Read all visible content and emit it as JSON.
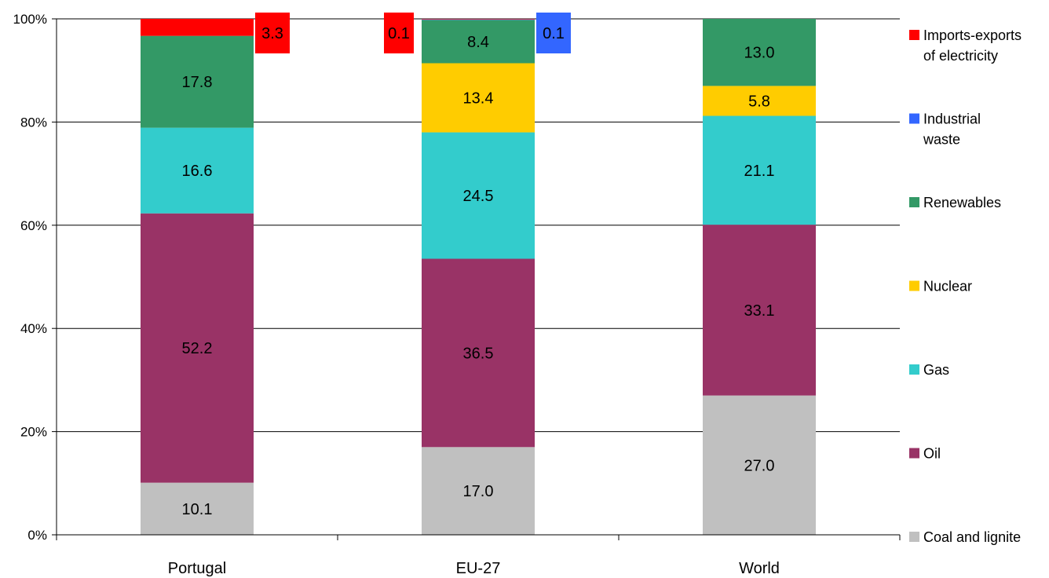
{
  "chart_data": {
    "type": "bar",
    "stacked": true,
    "normalized_percent": true,
    "categories": [
      "Portugal",
      "EU-27",
      "World"
    ],
    "ylim": [
      0,
      100
    ],
    "yticks": [
      "0%",
      "20%",
      "40%",
      "60%",
      "80%",
      "100%"
    ],
    "grid": true,
    "legend_position": "right",
    "series": [
      {
        "name": "Coal and lignite",
        "color": "#c0c0c0",
        "values": [
          10.1,
          17.0,
          27.0
        ]
      },
      {
        "name": "Oil",
        "color": "#993366",
        "values": [
          52.2,
          36.5,
          33.1
        ]
      },
      {
        "name": "Gas",
        "color": "#33cccc",
        "values": [
          16.6,
          24.5,
          21.1
        ]
      },
      {
        "name": "Nuclear",
        "color": "#ffcc00",
        "values": [
          0,
          13.4,
          5.8
        ]
      },
      {
        "name": "Renewables",
        "color": "#339966",
        "values": [
          17.8,
          8.4,
          13.0
        ]
      },
      {
        "name": "Industrial waste",
        "color": "#3366ff",
        "values": [
          0,
          0.1,
          0
        ]
      },
      {
        "name": "Imports-exports of electricity",
        "color": "#ff0000",
        "values": [
          3.3,
          0.1,
          0
        ]
      }
    ],
    "data_labels": [
      [
        "10.1",
        "52.2",
        "16.6",
        "",
        "17.8",
        "",
        "3.3"
      ],
      [
        "17.0",
        "36.5",
        "24.5",
        "13.4",
        "8.4",
        "0.1",
        "0.1"
      ],
      [
        "27.0",
        "33.1",
        "21.1",
        "5.8",
        "13.0",
        "",
        ""
      ]
    ],
    "legend": [
      {
        "lines": [
          "Imports-exports",
          "of electricity"
        ],
        "color": "#ff0000"
      },
      {
        "lines": [
          "Industrial",
          "waste"
        ],
        "color": "#3366ff"
      },
      {
        "lines": [
          "Renewables"
        ],
        "color": "#339966"
      },
      {
        "lines": [
          "Nuclear"
        ],
        "color": "#ffcc00"
      },
      {
        "lines": [
          "Gas"
        ],
        "color": "#33cccc"
      },
      {
        "lines": [
          "Oil"
        ],
        "color": "#993366"
      },
      {
        "lines": [
          "Coal and lignite"
        ],
        "color": "#c0c0c0"
      }
    ]
  }
}
